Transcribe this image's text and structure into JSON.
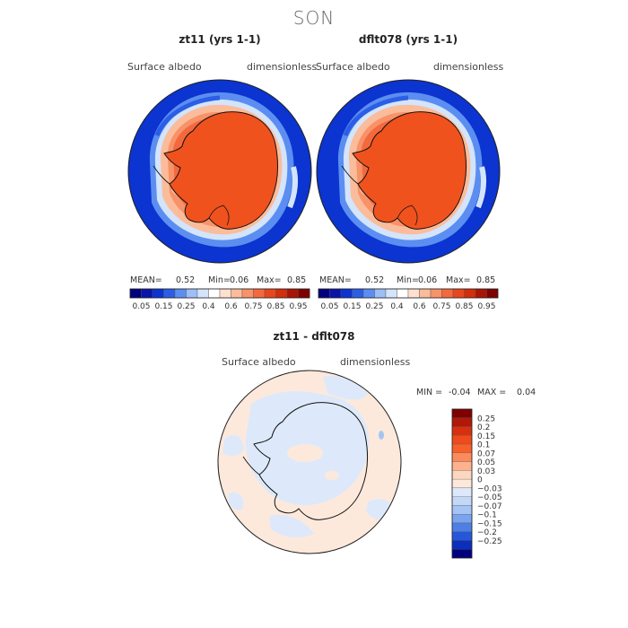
{
  "figure": {
    "title": "SON"
  },
  "panels": [
    {
      "title": "zt11 (yrs 1-1)",
      "variable": "Surface albedo",
      "units": "dimensionless",
      "stats": {
        "mean_label": "MEAN=",
        "mean": "0.52",
        "min_label": "Min=",
        "min": "0.06",
        "max_label": "Max=",
        "max": "0.85"
      }
    },
    {
      "title": "dflt078 (yrs 1-1)",
      "variable": "Surface albedo",
      "units": "dimensionless",
      "stats": {
        "mean_label": "MEAN=",
        "mean": "0.52",
        "min_label": "Min=",
        "min": "0.06",
        "max_label": "Max=",
        "max": "0.85"
      }
    }
  ],
  "abs_colorbar": {
    "labels": [
      "0.05",
      "0.15",
      "0.25",
      "0.4",
      "0.6",
      "0.75",
      "0.85",
      "0.95"
    ],
    "colors": [
      "#00007f",
      "#0a14a8",
      "#0b34d0",
      "#2b5ee6",
      "#5b8ef0",
      "#9dbef7",
      "#d3e4fb",
      "#ffffff",
      "#fde0cf",
      "#fbbc9b",
      "#f89268",
      "#f3693d",
      "#e8461c",
      "#d42d0c",
      "#a91406",
      "#7f0000"
    ]
  },
  "diff_panel": {
    "title": "zt11 - dflt078",
    "variable": "Surface albedo",
    "units": "dimensionless",
    "stats": {
      "min_label": "MIN =",
      "min": "-0.04",
      "max_label": "MAX =",
      "max": "0.04"
    }
  },
  "diff_colorbar": {
    "labels": [
      "0.25",
      "0.2",
      "0.15",
      "0.1",
      "0.07",
      "0.05",
      "0.03",
      "0",
      "−0.03",
      "−0.05",
      "−0.07",
      "−0.1",
      "−0.15",
      "−0.2",
      "−0.25"
    ],
    "colors": [
      "#7f0000",
      "#b0180a",
      "#d8300e",
      "#ef4a1c",
      "#f8602a",
      "#fb8a5c",
      "#fcb28e",
      "#fdd6bf",
      "#fde9dc",
      "#dde9fa",
      "#c3d8f7",
      "#a6c4f3",
      "#7aa4ee",
      "#4d7fe6",
      "#2557d8",
      "#0b2ebd",
      "#00007f"
    ]
  }
}
